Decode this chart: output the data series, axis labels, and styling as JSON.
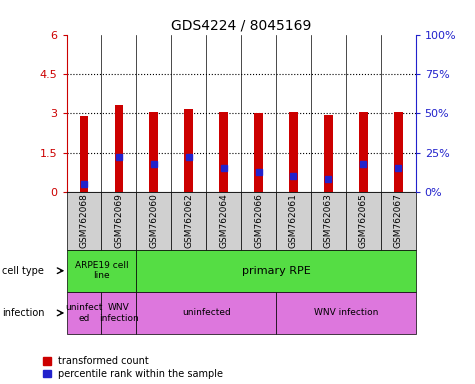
{
  "title": "GDS4224 / 8045169",
  "samples": [
    "GSM762068",
    "GSM762069",
    "GSM762060",
    "GSM762062",
    "GSM762064",
    "GSM762066",
    "GSM762061",
    "GSM762063",
    "GSM762065",
    "GSM762067"
  ],
  "transformed_counts": [
    2.9,
    3.3,
    3.05,
    3.15,
    3.05,
    3.0,
    3.05,
    2.95,
    3.05,
    3.05
  ],
  "percentile_ranks_pct": [
    5,
    22,
    18,
    22,
    15,
    13,
    10,
    8,
    18,
    15
  ],
  "ylim_left": [
    0,
    6
  ],
  "ylim_right": [
    0,
    100
  ],
  "yticks_left": [
    0,
    1.5,
    3.0,
    4.5,
    6
  ],
  "ytick_labels_left": [
    "0",
    "1.5",
    "3",
    "4.5",
    "6"
  ],
  "yticks_right": [
    0,
    25,
    50,
    75,
    100
  ],
  "ytick_labels_right": [
    "0%",
    "25%",
    "50%",
    "75%",
    "100%"
  ],
  "bar_color": "#cc0000",
  "percentile_color": "#2222cc",
  "cell_type_green": "#55dd44",
  "infection_pink": "#dd77dd",
  "cell_type_labels": [
    "ARPE19 cell\nline",
    "primary RPE"
  ],
  "infection_labels": [
    "uninfect\ned",
    "WNV\ninfection",
    "uninfected",
    "WNV infection"
  ],
  "left_label_cell_type": "cell type",
  "left_label_infection": "infection",
  "legend_red": "transformed count",
  "legend_blue": "percentile rank within the sample",
  "tick_label_color_left": "#cc0000",
  "tick_label_color_right": "#2222cc",
  "bar_width": 0.25
}
